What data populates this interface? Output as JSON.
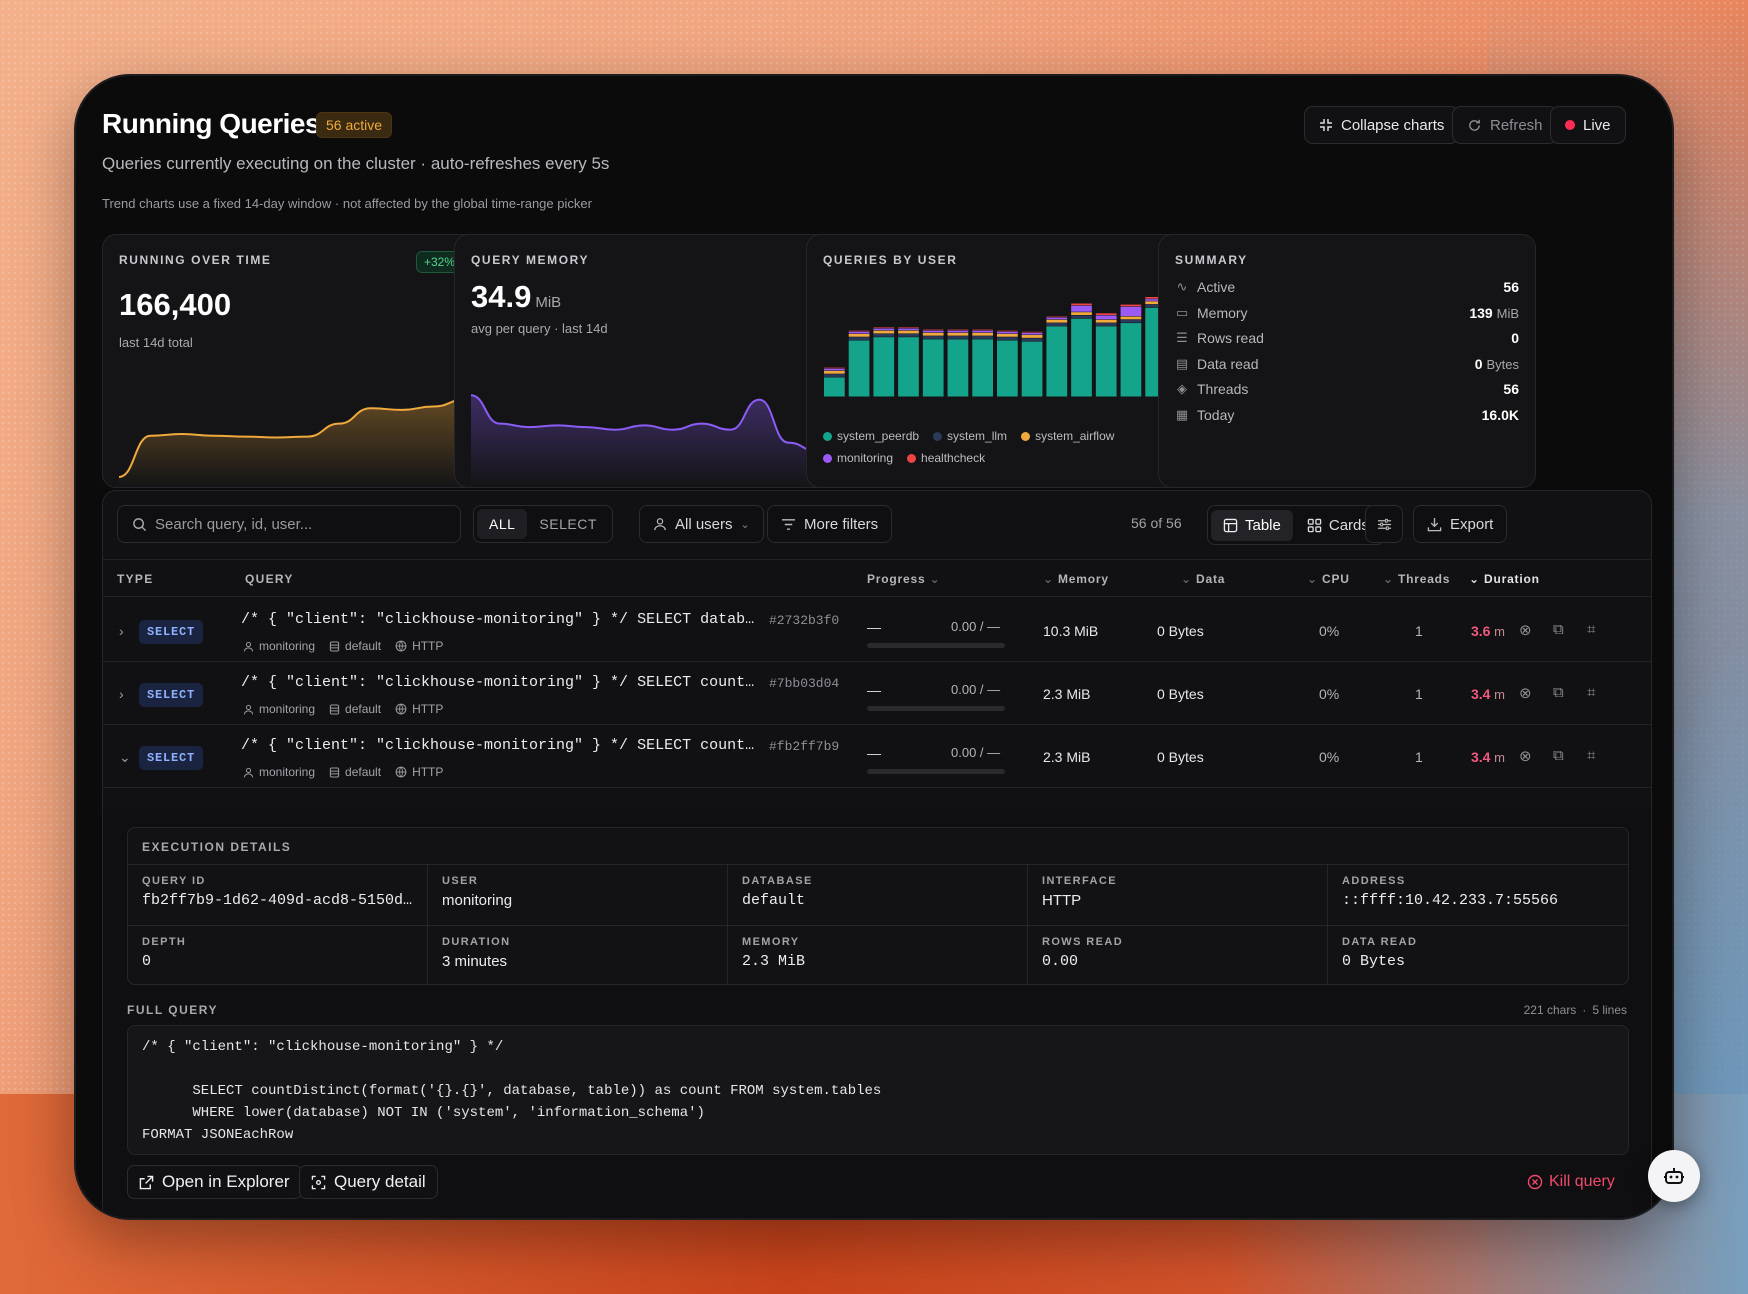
{
  "header": {
    "title": "Running Queries",
    "active_badge": "56 active",
    "subtitle": "Queries currently executing on the cluster · auto-refreshes every 5s",
    "note": "Trend charts use a fixed 14-day window · not affected by the global time-range picker",
    "collapse_label": "Collapse charts",
    "refresh_label": "Refresh",
    "live_label": "Live"
  },
  "cards": {
    "running": {
      "label": "RUNNING OVER TIME",
      "value": "166,400",
      "sub": "last 14d total",
      "delta": "+32%",
      "series": [
        0.0,
        0.48,
        0.5,
        0.48,
        0.47,
        0.46,
        0.47,
        0.62,
        0.8,
        0.78,
        0.82,
        0.9
      ],
      "color": "#f0a93c"
    },
    "memory": {
      "label": "QUERY MEMORY",
      "value": "34.9",
      "unit": "MiB",
      "sub": "avg per query · last 14d",
      "series": [
        0.95,
        0.62,
        0.58,
        0.6,
        0.58,
        0.55,
        0.6,
        0.55,
        0.62,
        0.55,
        0.9,
        0.4,
        0.3
      ],
      "color": "#8b5cf6"
    },
    "by_user": {
      "label": "QUERIES BY USER",
      "chart_data": {
        "type": "bar",
        "stacked": true,
        "categories": [
          "1",
          "2",
          "3",
          "4",
          "5",
          "6",
          "7",
          "8",
          "9",
          "10",
          "11",
          "12",
          "13",
          "14"
        ],
        "series": [
          {
            "name": "system_peerdb",
            "color": "#14a38b",
            "values": [
              18,
              52,
              55,
              55,
              53,
              53,
              53,
              52,
              51,
              65,
              72,
              65,
              68,
              82
            ]
          },
          {
            "name": "system_llm",
            "color": "#2a3a5a",
            "values": [
              3,
              3,
              3,
              3,
              3,
              3,
              3,
              3,
              3,
              3,
              3,
              3,
              3,
              3
            ]
          },
          {
            "name": "system_airflow",
            "color": "#f0a93c",
            "values": [
              3,
              3,
              3,
              3,
              3,
              3,
              3,
              3,
              3,
              3,
              3,
              3,
              3,
              3
            ]
          },
          {
            "name": "monitoring",
            "color": "#9b59f6",
            "values": [
              2,
              2,
              2,
              2,
              2,
              2,
              2,
              2,
              2,
              2,
              6,
              4,
              9,
              2
            ]
          },
          {
            "name": "healthcheck",
            "color": "#ef4444",
            "values": [
              1,
              1,
              1,
              1,
              1,
              1,
              1,
              1,
              1,
              1,
              2,
              2,
              2,
              2
            ]
          }
        ]
      }
    },
    "summary": {
      "label": "SUMMARY",
      "rows": [
        {
          "icon": "activity-icon",
          "glyph": "∿",
          "label": "Active",
          "value": "56",
          "unit": ""
        },
        {
          "icon": "memory-icon",
          "glyph": "▭",
          "label": "Memory",
          "value": "139",
          "unit": "MiB"
        },
        {
          "icon": "rows-icon",
          "glyph": "☰",
          "label": "Rows read",
          "value": "0",
          "unit": ""
        },
        {
          "icon": "drive-icon",
          "glyph": "▤",
          "label": "Data read",
          "value": "0",
          "unit": "Bytes"
        },
        {
          "icon": "layers-icon",
          "glyph": "◈",
          "label": "Threads",
          "value": "56",
          "unit": ""
        },
        {
          "icon": "calendar-icon",
          "glyph": "▦",
          "label": "Today",
          "value": "16.0K",
          "unit": ""
        }
      ]
    }
  },
  "toolbar": {
    "search_placeholder": "Search query, id, user...",
    "seg_all": "ALL",
    "seg_select": "SELECT",
    "all_users": "All users",
    "more_filters": "More filters",
    "count": "56 of 56",
    "table": "Table",
    "cards": "Cards",
    "export": "Export"
  },
  "columns": {
    "type": "TYPE",
    "query": "QUERY",
    "progress": "Progress",
    "memory": "Memory",
    "data": "Data",
    "cpu": "CPU",
    "threads": "Threads",
    "duration": "Duration"
  },
  "rows": [
    {
      "type": "SELECT",
      "query": "/* { \"client\": \"clickhouse-monitoring\" } */ SELECT database…",
      "hash": "#2732b3f0",
      "user": "monitoring",
      "db": "default",
      "iface": "HTTP",
      "dash": "—",
      "progress_label": "0.00 / —",
      "progress": 0,
      "memory": "10.3 MiB",
      "data": "0 Bytes",
      "cpu": "0%",
      "threads": "1",
      "dur_val": "3.6",
      "dur_unit": "m",
      "chevron": "›"
    },
    {
      "type": "SELECT",
      "query": "/* { \"client\": \"clickhouse-monitoring\" } */ SELECT countDis…",
      "hash": "#7bb03d04",
      "user": "monitoring",
      "db": "default",
      "iface": "HTTP",
      "dash": "—",
      "progress_label": "0.00 / —",
      "progress": 0,
      "memory": "2.3 MiB",
      "data": "0 Bytes",
      "cpu": "0%",
      "threads": "1",
      "dur_val": "3.4",
      "dur_unit": "m",
      "chevron": "›"
    },
    {
      "type": "SELECT",
      "query": "/* { \"client\": \"clickhouse-monitoring\" } */ SELECT countDis…",
      "hash": "#fb2ff7b9",
      "user": "monitoring",
      "db": "default",
      "iface": "HTTP",
      "dash": "—",
      "progress_label": "0.00 / —",
      "progress": 0,
      "memory": "2.3 MiB",
      "data": "0 Bytes",
      "cpu": "0%",
      "threads": "1",
      "dur_val": "3.4",
      "dur_unit": "m",
      "chevron": "⌄"
    }
  ],
  "details": {
    "title": "EXECUTION DETAILS",
    "cells": [
      {
        "k": "QUERY ID",
        "v": "fb2ff7b9-1d62-409d-acd8-5150d…",
        "mono": true
      },
      {
        "k": "USER",
        "v": "monitoring",
        "mono": false
      },
      {
        "k": "DATABASE",
        "v": "default",
        "mono": true
      },
      {
        "k": "INTERFACE",
        "v": "HTTP",
        "mono": false
      },
      {
        "k": "ADDRESS",
        "v": "::ffff:10.42.233.7:55566",
        "mono": true
      },
      {
        "k": "DEPTH",
        "v": "0",
        "mono": true
      },
      {
        "k": "DURATION",
        "v": "3 minutes",
        "mono": false
      },
      {
        "k": "MEMORY",
        "v": "2.3 MiB",
        "mono": true
      },
      {
        "k": "ROWS READ",
        "v": "0.00",
        "mono": true
      },
      {
        "k": "DATA READ",
        "v": "0 Bytes",
        "mono": true
      }
    ],
    "full_query_label": "FULL QUERY",
    "chars": "221 chars",
    "sep": "·",
    "lines": "5 lines",
    "code": [
      "/* { \"client\": \"clickhouse-monitoring\" } */",
      "",
      "      SELECT countDistinct(format('{}.{}', database, table)) as count FROM system.tables",
      "      WHERE lower(database) NOT IN ('system', 'information_schema')",
      "FORMAT JSONEachRow"
    ],
    "open_explorer": "Open in Explorer",
    "query_detail": "Query detail",
    "kill": "Kill query"
  }
}
